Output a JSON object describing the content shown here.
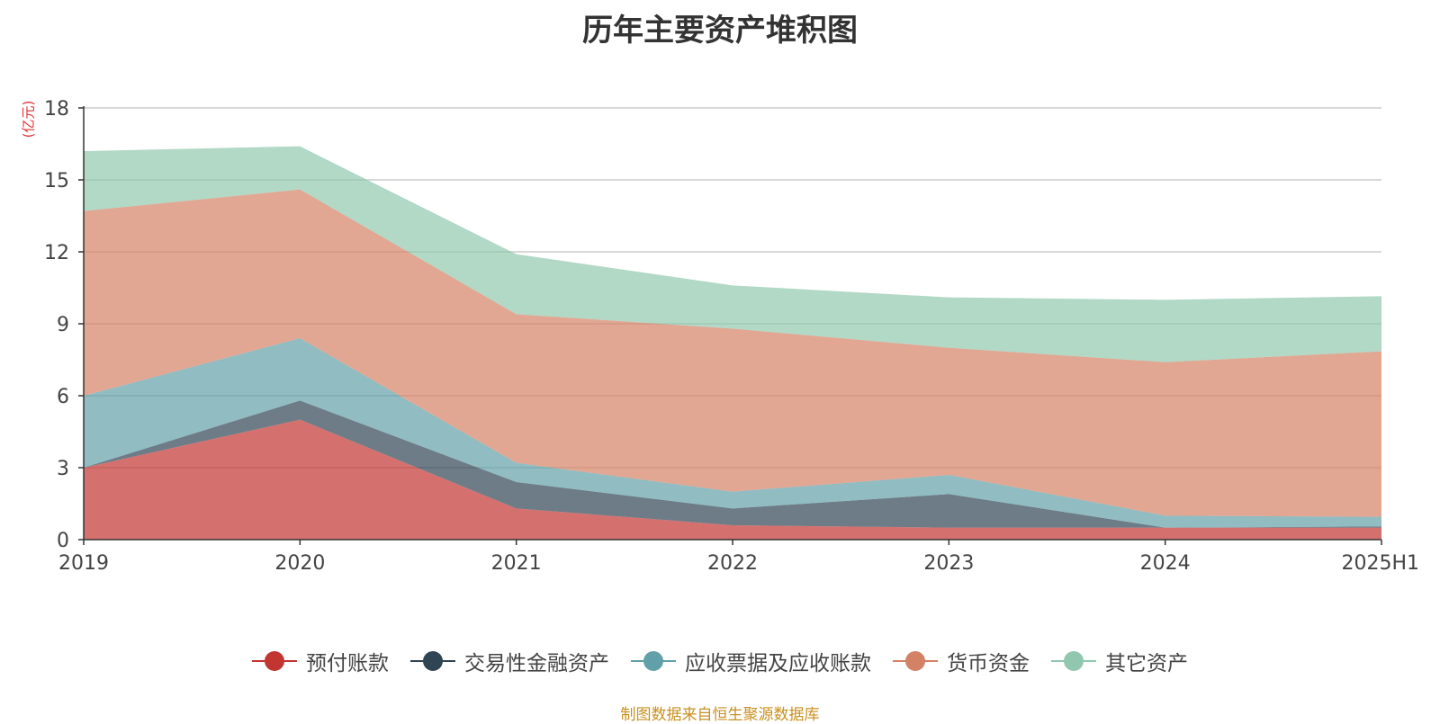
{
  "chart_data": {
    "type": "area",
    "stacked": true,
    "title": "历年主要资产堆积图",
    "unit": "(亿元)",
    "categories": [
      "2019",
      "2020",
      "2021",
      "2022",
      "2023",
      "2024",
      "2025H1"
    ],
    "ylim": [
      0,
      18
    ],
    "yticks": [
      "0",
      "3",
      "6",
      "9",
      "12",
      "15",
      "18"
    ],
    "grid": true,
    "legend_position": "bottom",
    "series": [
      {
        "name": "预付账款",
        "color": "#c23531",
        "values": [
          3.0,
          5.0,
          1.3,
          0.6,
          0.5,
          0.5,
          0.5
        ]
      },
      {
        "name": "交易性金融资产",
        "color": "#2f4554",
        "values": [
          0.0,
          0.8,
          1.1,
          0.7,
          1.4,
          0.0,
          0.05
        ]
      },
      {
        "name": "应收票据及应收账款",
        "color": "#61a0a8",
        "values": [
          3.0,
          2.6,
          0.8,
          0.7,
          0.8,
          0.5,
          0.4
        ]
      },
      {
        "name": "货币资金",
        "color": "#d48265",
        "values": [
          7.7,
          6.2,
          6.2,
          6.8,
          5.3,
          6.4,
          6.9
        ]
      },
      {
        "name": "其它资产",
        "color": "#91c7ae",
        "values": [
          2.5,
          1.8,
          2.5,
          1.8,
          2.1,
          2.6,
          2.3
        ]
      }
    ]
  },
  "source_note": "制图数据来自恒生聚源数据库"
}
